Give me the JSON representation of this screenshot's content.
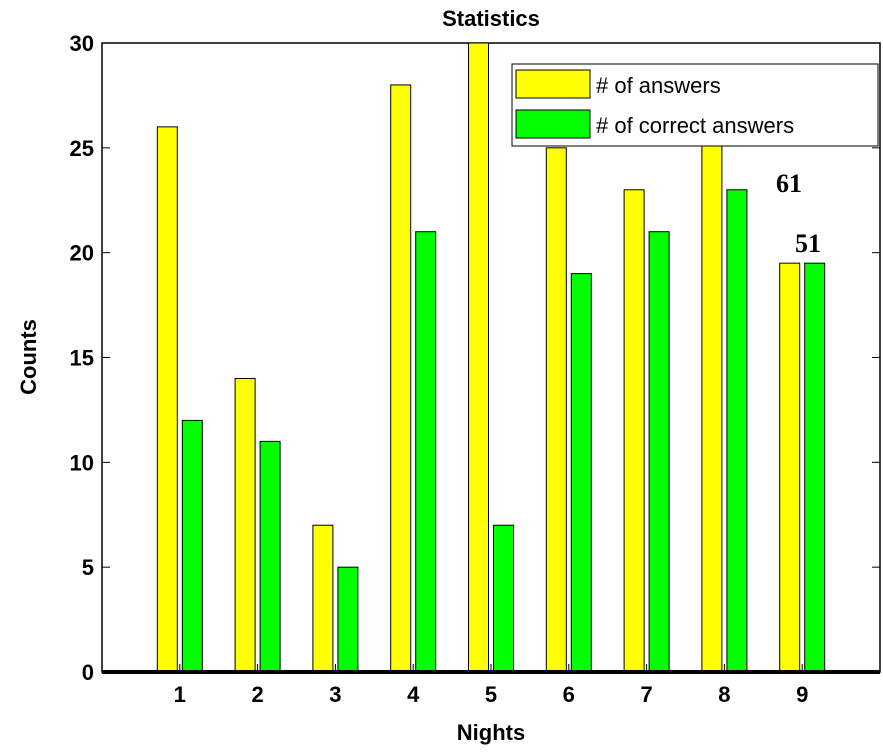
{
  "chart_data": {
    "type": "bar",
    "title": "Statistics",
    "xlabel": "Nights",
    "ylabel": "Counts",
    "categories": [
      "1",
      "2",
      "3",
      "4",
      "5",
      "6",
      "7",
      "8",
      "9"
    ],
    "ylim": [
      0,
      30
    ],
    "yticks": [
      "0",
      "5",
      "10",
      "15",
      "20",
      "25",
      "30"
    ],
    "series": [
      {
        "name": "# of answers",
        "color": "#ffff00",
        "values": [
          26,
          14,
          7,
          28,
          30,
          25,
          23,
          26,
          19.5
        ]
      },
      {
        "name": "# of correct answers",
        "color": "#00ff00",
        "values": [
          12,
          11,
          5,
          21,
          7,
          19,
          21,
          23,
          19.5
        ]
      }
    ],
    "annotations": [
      "61",
      "51"
    ],
    "legend_position": "top-right",
    "grid": false
  }
}
